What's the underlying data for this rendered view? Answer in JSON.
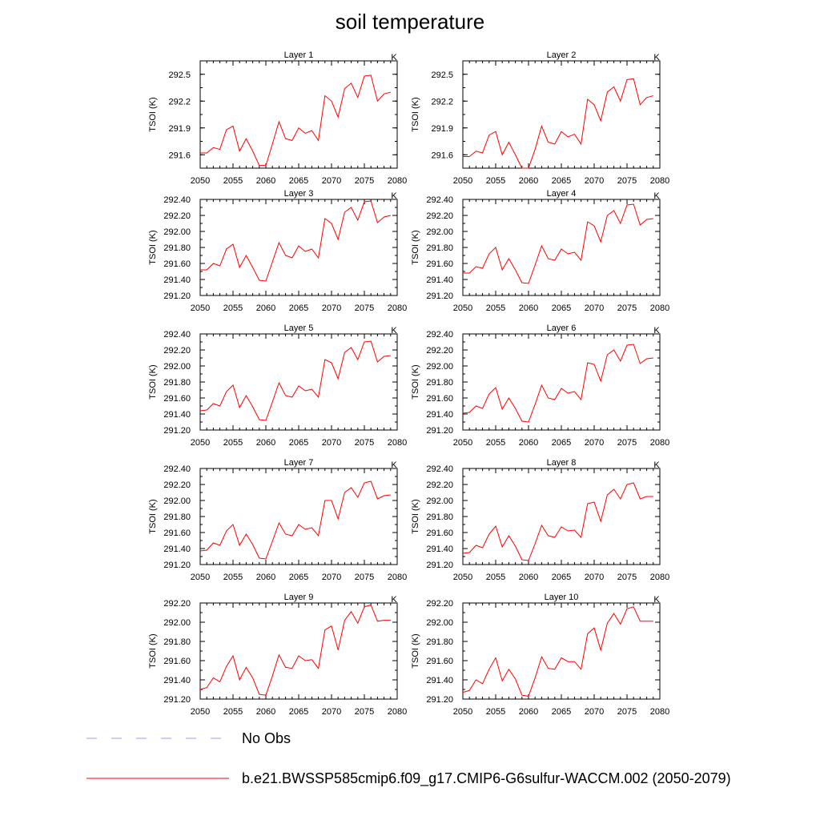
{
  "title": "soil temperature",
  "chart_data": {
    "type": "line",
    "xlim": [
      2050,
      2080
    ],
    "x_ticks": [
      "2050",
      "2055",
      "2060",
      "2065",
      "2070",
      "2075",
      "2080"
    ],
    "x": [
      2050,
      2051,
      2052,
      2053,
      2054,
      2055,
      2056,
      2057,
      2058,
      2059,
      2060,
      2061,
      2062,
      2063,
      2064,
      2065,
      2066,
      2067,
      2068,
      2069,
      2070,
      2071,
      2072,
      2073,
      2074,
      2075,
      2076,
      2077,
      2078,
      2079
    ],
    "legend": [
      {
        "label": "No Obs",
        "style": "dashed",
        "color": "#9999ff"
      },
      {
        "label": "b.e21.BWSSP585cmip6.f09_g17.CMIP6-G6sulfur-WACCM.002 (2050-2079)",
        "style": "solid",
        "color": "#ff0000"
      }
    ],
    "panels": [
      {
        "name": "Layer 1",
        "units": "K",
        "ylabel": "TSOI  (K)",
        "ylim": [
          291.45,
          292.65
        ],
        "y_ticks": [
          "291.6",
          "291.9",
          "292.2",
          "292.5"
        ],
        "values": [
          291.62,
          291.62,
          291.68,
          291.66,
          291.88,
          291.92,
          291.64,
          291.78,
          291.64,
          291.48,
          291.48,
          291.72,
          291.97,
          291.78,
          291.76,
          291.9,
          291.84,
          291.87,
          291.76,
          292.26,
          292.2,
          292.02,
          292.34,
          292.4,
          292.24,
          292.48,
          292.49,
          292.2,
          292.28,
          292.3
        ],
        "series_color": "#ff0000"
      },
      {
        "name": "Layer 2",
        "units": "K",
        "ylabel": "TSOI  (K)",
        "ylim": [
          291.45,
          292.65
        ],
        "y_ticks": [
          "291.6",
          "291.9",
          "292.2",
          "292.5"
        ],
        "values": [
          291.58,
          291.58,
          291.64,
          291.62,
          291.82,
          291.86,
          291.6,
          291.74,
          291.6,
          291.45,
          291.45,
          291.66,
          291.92,
          291.74,
          291.72,
          291.86,
          291.8,
          291.83,
          291.72,
          292.22,
          292.16,
          291.98,
          292.3,
          292.36,
          292.2,
          292.44,
          292.45,
          292.16,
          292.24,
          292.26
        ],
        "series_color": "#ff0000"
      },
      {
        "name": "Layer 3",
        "units": "K",
        "ylabel": "TSOI  (K)",
        "ylim": [
          291.2,
          292.4
        ],
        "y_ticks": [
          "291.20",
          "291.40",
          "291.60",
          "291.80",
          "292.00",
          "292.20",
          "292.40"
        ],
        "values": [
          291.52,
          291.52,
          291.6,
          291.57,
          291.78,
          291.84,
          291.55,
          291.7,
          291.55,
          291.39,
          291.38,
          291.62,
          291.86,
          291.7,
          291.67,
          291.82,
          291.75,
          291.78,
          291.67,
          292.16,
          292.1,
          291.9,
          292.24,
          292.3,
          292.14,
          292.37,
          292.38,
          292.11,
          292.18,
          292.2
        ],
        "series_color": "#ff0000"
      },
      {
        "name": "Layer 4",
        "units": "K",
        "ylabel": "TSOI  (K)",
        "ylim": [
          291.2,
          292.4
        ],
        "y_ticks": [
          "291.20",
          "291.40",
          "291.60",
          "291.80",
          "292.00",
          "292.20",
          "292.40"
        ],
        "values": [
          291.48,
          291.48,
          291.56,
          291.54,
          291.72,
          291.8,
          291.52,
          291.66,
          291.52,
          291.36,
          291.35,
          291.58,
          291.82,
          291.66,
          291.64,
          291.78,
          291.72,
          291.74,
          291.64,
          292.12,
          292.07,
          291.87,
          292.2,
          292.26,
          292.1,
          292.33,
          292.34,
          292.08,
          292.15,
          292.16
        ],
        "series_color": "#ff0000"
      },
      {
        "name": "Layer 5",
        "units": "K",
        "ylabel": "TSOI  (K)",
        "ylim": [
          291.2,
          292.4
        ],
        "y_ticks": [
          "291.20",
          "291.40",
          "291.60",
          "291.80",
          "292.00",
          "292.20",
          "292.40"
        ],
        "values": [
          291.44,
          291.45,
          291.53,
          291.5,
          291.68,
          291.76,
          291.48,
          291.63,
          291.49,
          291.33,
          291.32,
          291.55,
          291.79,
          291.63,
          291.61,
          291.75,
          291.69,
          291.71,
          291.61,
          292.08,
          292.04,
          291.84,
          292.17,
          292.23,
          292.08,
          292.3,
          292.31,
          292.05,
          292.12,
          292.13
        ],
        "series_color": "#ff0000"
      },
      {
        "name": "Layer 6",
        "units": "K",
        "ylabel": "TSOI  (K)",
        "ylim": [
          291.2,
          292.4
        ],
        "y_ticks": [
          "291.20",
          "291.40",
          "291.60",
          "291.80",
          "292.00",
          "292.20",
          "292.40"
        ],
        "values": [
          291.41,
          291.42,
          291.5,
          291.47,
          291.65,
          291.73,
          291.46,
          291.6,
          291.47,
          291.31,
          291.3,
          291.52,
          291.76,
          291.6,
          291.58,
          291.72,
          291.66,
          291.68,
          291.58,
          292.04,
          292.02,
          291.81,
          292.14,
          292.2,
          292.06,
          292.26,
          292.27,
          292.03,
          292.09,
          292.1
        ],
        "series_color": "#ff0000"
      },
      {
        "name": "Layer 7",
        "units": "K",
        "ylabel": "TSOI  (K)",
        "ylim": [
          291.2,
          292.4
        ],
        "y_ticks": [
          "291.20",
          "291.40",
          "291.60",
          "291.80",
          "292.00",
          "292.20",
          "292.40"
        ],
        "values": [
          291.37,
          291.38,
          291.47,
          291.44,
          291.62,
          291.7,
          291.44,
          291.58,
          291.45,
          291.28,
          291.27,
          291.49,
          291.72,
          291.58,
          291.56,
          291.7,
          291.64,
          291.66,
          291.56,
          292.0,
          292.0,
          291.77,
          292.1,
          292.16,
          292.04,
          292.22,
          292.24,
          292.02,
          292.06,
          292.07
        ],
        "series_color": "#ff0000"
      },
      {
        "name": "Layer 8",
        "units": "K",
        "ylabel": "TSOI  (K)",
        "ylim": [
          291.2,
          292.4
        ],
        "y_ticks": [
          "291.20",
          "291.40",
          "291.60",
          "291.80",
          "292.00",
          "292.20",
          "292.40"
        ],
        "values": [
          291.34,
          291.35,
          291.44,
          291.41,
          291.58,
          291.68,
          291.42,
          291.56,
          291.43,
          291.26,
          291.25,
          291.46,
          291.69,
          291.56,
          291.54,
          291.67,
          291.62,
          291.63,
          291.54,
          291.96,
          291.98,
          291.74,
          292.07,
          292.14,
          292.02,
          292.2,
          292.22,
          292.02,
          292.05,
          292.05
        ],
        "series_color": "#ff0000"
      },
      {
        "name": "Layer 9",
        "units": "K",
        "ylabel": "TSOI  (K)",
        "ylim": [
          291.2,
          292.2
        ],
        "y_ticks": [
          "291.20",
          "291.40",
          "291.60",
          "291.80",
          "292.00",
          "292.20"
        ],
        "values": [
          291.3,
          291.32,
          291.42,
          291.38,
          291.54,
          291.65,
          291.4,
          291.53,
          291.42,
          291.25,
          291.24,
          291.44,
          291.66,
          291.53,
          291.52,
          291.65,
          291.6,
          291.61,
          291.52,
          291.92,
          291.96,
          291.71,
          292.02,
          292.11,
          291.99,
          292.16,
          292.18,
          292.01,
          292.02,
          292.02
        ],
        "series_color": "#ff0000"
      },
      {
        "name": "Layer 10",
        "units": "K",
        "ylabel": "TSOI  (K)",
        "ylim": [
          291.2,
          292.2
        ],
        "y_ticks": [
          "291.20",
          "291.40",
          "291.60",
          "291.80",
          "292.00",
          "292.20"
        ],
        "values": [
          291.27,
          291.29,
          291.4,
          291.36,
          291.51,
          291.63,
          291.39,
          291.51,
          291.41,
          291.24,
          291.23,
          291.42,
          291.64,
          291.52,
          291.51,
          291.63,
          291.59,
          291.59,
          291.51,
          291.88,
          291.94,
          291.71,
          291.99,
          292.09,
          291.98,
          292.14,
          292.16,
          292.01,
          292.01,
          292.01
        ],
        "series_color": "#ff0000"
      }
    ]
  }
}
